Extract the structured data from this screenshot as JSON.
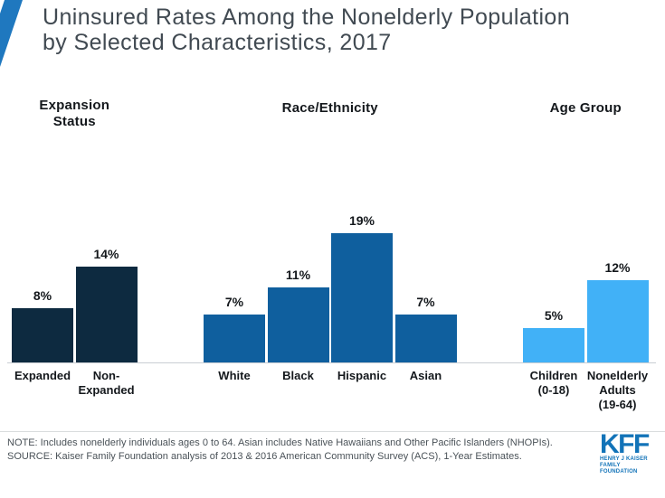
{
  "title": {
    "line1": "Uninsured Rates Among the Nonelderly Population",
    "line2": "by Selected Characteristics, 2017"
  },
  "chart_data": {
    "type": "bar",
    "unit": "percent",
    "ylim": [
      0,
      21
    ],
    "grid": false,
    "legend": false,
    "groups": [
      {
        "header": "Expansion\nStatus",
        "color": "#0d2a40",
        "categories": [
          "Expanded",
          "Non-\nExpanded"
        ],
        "values": [
          8,
          14
        ],
        "value_labels": [
          "8%",
          "14%"
        ]
      },
      {
        "header": "Race/Ethnicity",
        "color": "#0f5f9e",
        "categories": [
          "White",
          "Black",
          "Hispanic",
          "Asian"
        ],
        "values": [
          7,
          11,
          19,
          7
        ],
        "value_labels": [
          "7%",
          "11%",
          "19%",
          "7%"
        ]
      },
      {
        "header": "Age Group",
        "color": "#41b1f7",
        "categories": [
          "Children\n(0-18)",
          "Nonelderly\nAdults\n(19-64)"
        ],
        "values": [
          5,
          12
        ],
        "value_labels": [
          "5%",
          "12%"
        ]
      }
    ]
  },
  "footer": {
    "note": "NOTE: Includes nonelderly individuals ages 0 to 64. Asian includes Native Hawaiians and Other Pacific Islanders (NHOPIs).",
    "source": "SOURCE: Kaiser Family Foundation analysis of 2013 & 2016 American Community Survey (ACS), 1-Year Estimates.",
    "logo": {
      "text": "KFF",
      "tagline_line1": "HENRY J KAISER",
      "tagline_line2": "FAMILY FOUNDATION",
      "color": "#1273b8"
    }
  },
  "accent": {
    "corner_color": "#1f78bf"
  }
}
